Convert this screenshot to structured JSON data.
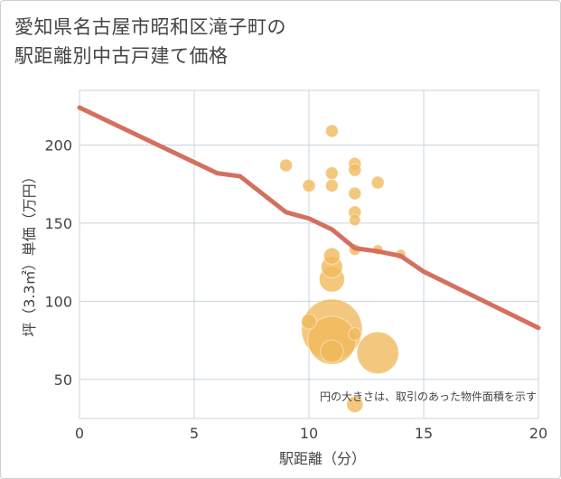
{
  "chart_data": {
    "type": "scatter",
    "title_line1": "愛知県名古屋市昭和区滝子町の",
    "title_line2": "駅距離別中古戸建て価格",
    "xlabel": "駅距離（分）",
    "ylabel": "坪（3.3㎡）単価（万円）",
    "xlim": [
      0,
      20
    ],
    "ylim": [
      25,
      235
    ],
    "x_ticks": [
      0,
      5,
      10,
      15,
      20
    ],
    "y_ticks": [
      50,
      100,
      150,
      200
    ],
    "note": "円の大きさは、取引のあった物件面積を示す",
    "bubble_color": "#f0b95a",
    "line_color": "#d4705f",
    "points": [
      {
        "x": 9,
        "y": 187,
        "size": 1
      },
      {
        "x": 10,
        "y": 174,
        "size": 1
      },
      {
        "x": 10,
        "y": 87,
        "size": 1.2
      },
      {
        "x": 11,
        "y": 209,
        "size": 1
      },
      {
        "x": 11,
        "y": 182,
        "size": 1
      },
      {
        "x": 11,
        "y": 174,
        "size": 1
      },
      {
        "x": 11,
        "y": 129,
        "size": 1.3
      },
      {
        "x": 11,
        "y": 122,
        "size": 1.7
      },
      {
        "x": 11,
        "y": 114,
        "size": 2
      },
      {
        "x": 11,
        "y": 82,
        "size": 4.8
      },
      {
        "x": 11,
        "y": 75,
        "size": 3.8
      },
      {
        "x": 11,
        "y": 68,
        "size": 1.8
      },
      {
        "x": 12,
        "y": 188,
        "size": 1
      },
      {
        "x": 12,
        "y": 184,
        "size": 1
      },
      {
        "x": 12,
        "y": 169,
        "size": 1
      },
      {
        "x": 12,
        "y": 157,
        "size": 1
      },
      {
        "x": 12,
        "y": 152,
        "size": 0.9
      },
      {
        "x": 12,
        "y": 133,
        "size": 0.9
      },
      {
        "x": 12,
        "y": 79,
        "size": 1
      },
      {
        "x": 12,
        "y": 34,
        "size": 1.3
      },
      {
        "x": 13,
        "y": 176,
        "size": 1
      },
      {
        "x": 13,
        "y": 133,
        "size": 0.8
      },
      {
        "x": 13,
        "y": 67,
        "size": 3.3
      },
      {
        "x": 14,
        "y": 130,
        "size": 0.8
      }
    ],
    "trend": {
      "x": [
        0,
        6,
        7,
        9,
        10,
        11,
        12,
        13,
        14,
        15,
        20
      ],
      "y": [
        224,
        182,
        180,
        157,
        153,
        146,
        134,
        132,
        129,
        119,
        83
      ]
    }
  }
}
